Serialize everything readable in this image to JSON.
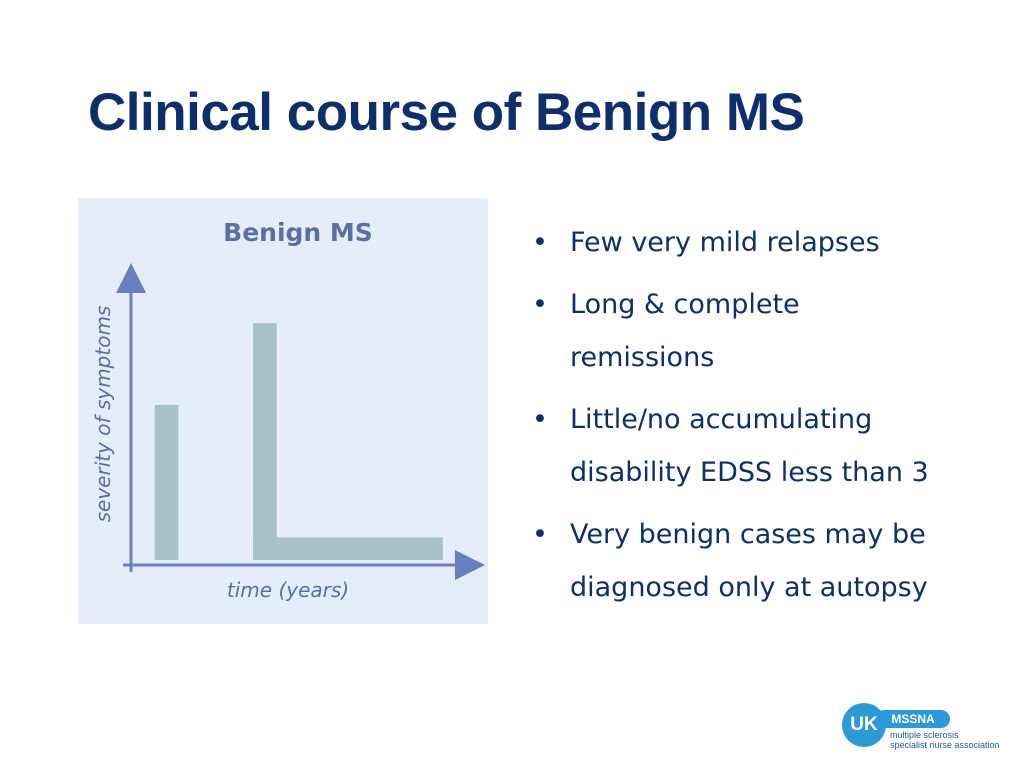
{
  "slide": {
    "title": "Clinical course of Benign MS"
  },
  "figure": {
    "title": "Benign MS",
    "ylabel": "severity of symptoms",
    "xlabel": "time (years)"
  },
  "chart_data": {
    "type": "bar",
    "title": "Benign MS",
    "xlabel": "time (years)",
    "ylabel": "severity of symptoms",
    "note": "schematic, no numeric axes",
    "relapses": [
      {
        "x_start": 0.07,
        "x_end": 0.14,
        "severity": 0.55
      },
      {
        "x_start": 0.36,
        "x_end": 0.43,
        "severity": 0.84
      }
    ],
    "baseline_disability": {
      "x_start": 0.36,
      "x_end": 0.92,
      "severity": 0.08
    },
    "colors": {
      "bar": "#a8c1c9",
      "axis": "#6a7fc0"
    }
  },
  "bullets": [
    {
      "lines": [
        "Few very mild relapses"
      ]
    },
    {
      "lines": [
        "Long & complete",
        "remissions"
      ]
    },
    {
      "lines": [
        "Little/no accumulating",
        "disability EDSS less than 3"
      ]
    },
    {
      "lines": [
        "Very benign cases may be",
        "diagnosed only at autopsy"
      ]
    }
  ],
  "bullet_symbol": "•",
  "logo": {
    "badge": "UK",
    "name": "MSSNA",
    "line1": "multiple sclerosis",
    "line2": "specialist nurse association"
  }
}
